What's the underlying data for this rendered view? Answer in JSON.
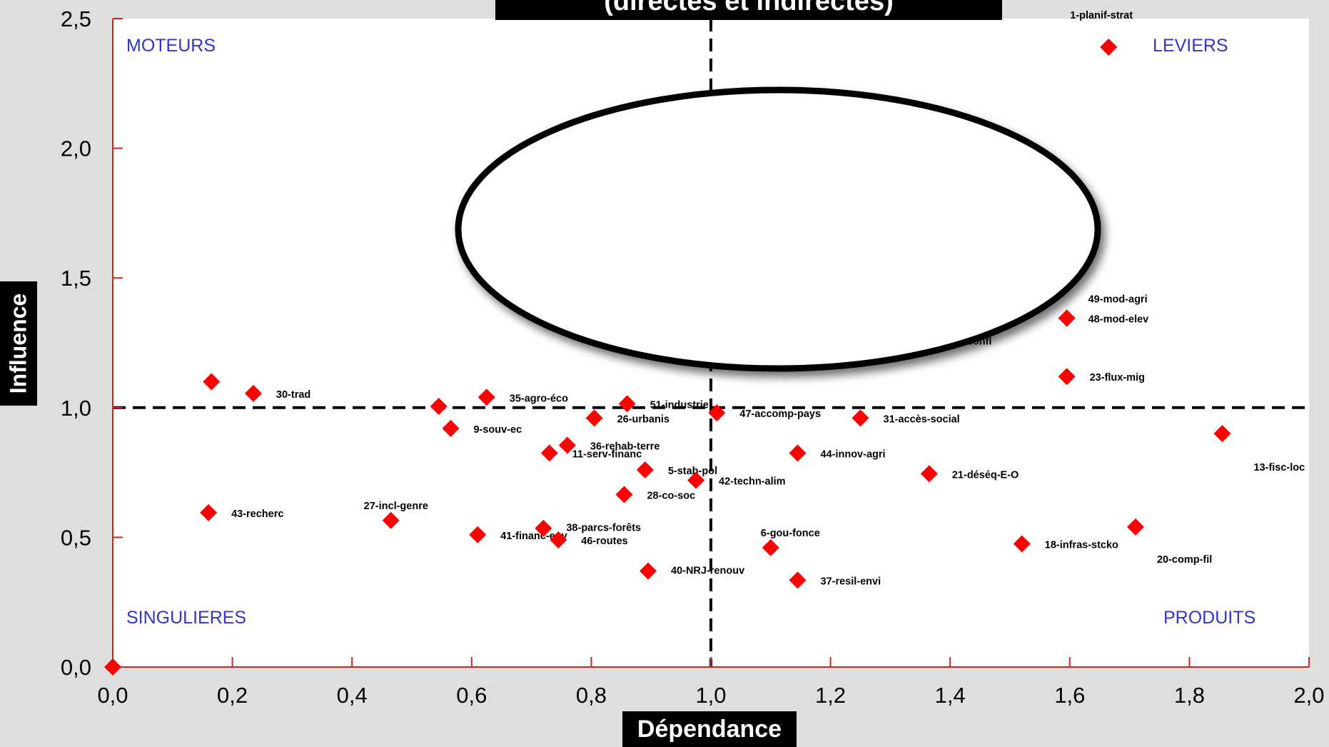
{
  "colors": {
    "axis": "#e31e1e",
    "marker": "#ff0000",
    "quadrant_label": "#3333cc",
    "plot_bg": "#ffffff",
    "page_bg": "#dedede",
    "threshold_line": "#000000"
  },
  "title": "(directes et indirectes)",
  "quadrant_labels": {
    "top_left": "MOTEURS",
    "top_right": "LEVIERS",
    "bottom_left": "SINGULIERES",
    "bottom_right": "PRODUITS"
  },
  "chart_data": {
    "type": "scatter",
    "xlabel": "Dépendance",
    "ylabel": "Influence",
    "xlim": [
      0,
      2
    ],
    "ylim": [
      0,
      2.5
    ],
    "x_ticks": [
      "0,0",
      "0,2",
      "0,4",
      "0,6",
      "0,8",
      "1,0",
      "1,2",
      "1,4",
      "1,6",
      "1,8",
      "2,0"
    ],
    "y_ticks": [
      "0,0",
      "0,5",
      "1,0",
      "1,5",
      "2,0",
      "2,5"
    ],
    "thresholds": {
      "x": 1.0,
      "y": 1.0
    },
    "grid": false,
    "points": [
      {
        "label": "1-planif-strat",
        "x": 1.665,
        "y": 2.39
      },
      {
        "label": "49-mod-agri",
        "x": 1.595,
        "y": 1.345
      },
      {
        "label": "48-mod-elev",
        "x": 1.595,
        "y": 1.345
      },
      {
        "label": "24-confl",
        "x": 1.365,
        "y": 1.26
      },
      {
        "label": "23-flux-mig",
        "x": 1.595,
        "y": 1.12
      },
      {
        "label": "13-fisc-loc",
        "x": 1.855,
        "y": 0.9
      },
      {
        "label": "30-trad",
        "x": 0.235,
        "y": 1.055
      },
      {
        "label": "",
        "x": 0.165,
        "y": 1.1
      },
      {
        "label": "35-agro-éco",
        "x": 0.625,
        "y": 1.04
      },
      {
        "label": "",
        "x": 0.545,
        "y": 1.005
      },
      {
        "label": "51-industrie",
        "x": 0.86,
        "y": 1.015
      },
      {
        "label": "26-urbanis",
        "x": 0.805,
        "y": 0.96
      },
      {
        "label": "47-accomp-pays",
        "x": 1.01,
        "y": 0.98
      },
      {
        "label": "31-accès-social",
        "x": 1.25,
        "y": 0.96
      },
      {
        "label": "9-souv-ec",
        "x": 0.565,
        "y": 0.92
      },
      {
        "label": "36-rehab-terre",
        "x": 0.76,
        "y": 0.855
      },
      {
        "label": "11-serv-financ",
        "x": 0.73,
        "y": 0.825
      },
      {
        "label": "44-innov-agri",
        "x": 1.145,
        "y": 0.825
      },
      {
        "label": "5-stab-pol",
        "x": 0.89,
        "y": 0.76
      },
      {
        "label": "42-techn-alim",
        "x": 0.975,
        "y": 0.72
      },
      {
        "label": "21-déséq-E-O",
        "x": 1.365,
        "y": 0.745
      },
      {
        "label": "28-co-soc",
        "x": 0.855,
        "y": 0.665
      },
      {
        "label": "43-recherc",
        "x": 0.16,
        "y": 0.595
      },
      {
        "label": "27-incl-genre",
        "x": 0.465,
        "y": 0.565
      },
      {
        "label": "41-financ-env",
        "x": 0.61,
        "y": 0.51
      },
      {
        "label": "38-parcs-forêts",
        "x": 0.72,
        "y": 0.535
      },
      {
        "label": "46-routes",
        "x": 0.745,
        "y": 0.49
      },
      {
        "label": "6-gou-fonce",
        "x": 1.1,
        "y": 0.46
      },
      {
        "label": "18-infras-stcko",
        "x": 1.52,
        "y": 0.475
      },
      {
        "label": "20-comp-fil",
        "x": 1.71,
        "y": 0.54
      },
      {
        "label": "40-NRJ-renouv",
        "x": 0.895,
        "y": 0.37
      },
      {
        "label": "37-resil-envi",
        "x": 1.145,
        "y": 0.335
      },
      {
        "label": "",
        "x": 0.0,
        "y": 0.0
      }
    ]
  }
}
